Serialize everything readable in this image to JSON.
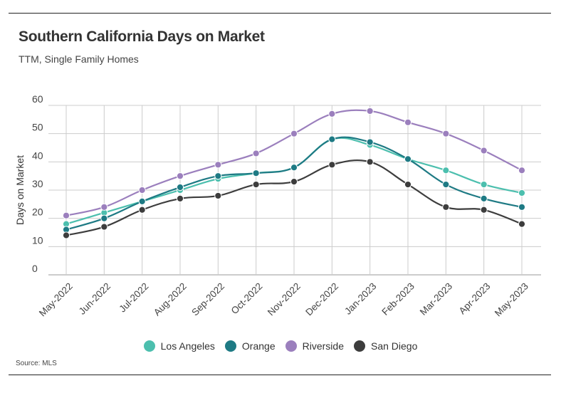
{
  "chart_data": {
    "type": "line",
    "title": "Southern California Days on Market",
    "subtitle": "TTM, Single Family Homes",
    "xlabel": "",
    "ylabel": "Days on Market",
    "ylim": [
      0,
      60
    ],
    "yticks": [
      0,
      10,
      20,
      30,
      40,
      50,
      60
    ],
    "grid": true,
    "categories": [
      "May-2022",
      "Jun-2022",
      "Jul-2022",
      "Aug-2022",
      "Sep-2022",
      "Oct-2022",
      "Nov-2022",
      "Dec-2022",
      "Jan-2023",
      "Feb-2023",
      "Mar-2023",
      "Apr-2023",
      "May-2023"
    ],
    "series": [
      {
        "name": "Los Angeles",
        "color": "#4cbfae",
        "values": [
          18,
          22,
          26,
          30,
          34,
          36,
          38,
          48,
          46,
          41,
          37,
          32,
          29
        ]
      },
      {
        "name": "Orange",
        "color": "#1e7a84",
        "values": [
          16,
          20,
          26,
          31,
          35,
          36,
          38,
          48,
          47,
          41,
          32,
          27,
          24
        ]
      },
      {
        "name": "Riverside",
        "color": "#9b7fbd",
        "values": [
          21,
          24,
          30,
          35,
          39,
          43,
          50,
          57,
          58,
          54,
          50,
          44,
          37
        ]
      },
      {
        "name": "San Diego",
        "color": "#3d3d3d",
        "values": [
          14,
          17,
          23,
          27,
          28,
          32,
          33,
          39,
          40,
          32,
          24,
          23,
          18
        ]
      }
    ],
    "legend_position": "bottom"
  },
  "source": "Source: MLS"
}
